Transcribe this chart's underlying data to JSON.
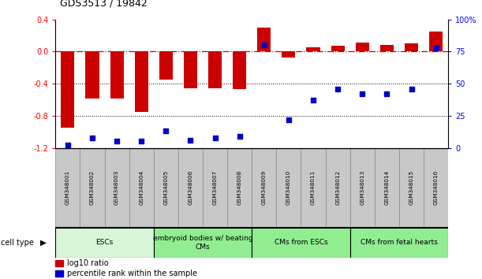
{
  "title": "GDS3513 / 19842",
  "samples": [
    "GSM348001",
    "GSM348002",
    "GSM348003",
    "GSM348004",
    "GSM348005",
    "GSM348006",
    "GSM348007",
    "GSM348008",
    "GSM348009",
    "GSM348010",
    "GSM348011",
    "GSM348012",
    "GSM348013",
    "GSM348014",
    "GSM348015",
    "GSM348016"
  ],
  "log10_ratio": [
    -0.95,
    -0.58,
    -0.58,
    -0.75,
    -0.35,
    -0.46,
    -0.46,
    -0.47,
    0.3,
    -0.07,
    0.05,
    0.07,
    0.11,
    0.08,
    0.1,
    0.25
  ],
  "percentile_rank": [
    2,
    8,
    5,
    5,
    13,
    6,
    8,
    9,
    80,
    22,
    37,
    46,
    42,
    42,
    46,
    78
  ],
  "cell_type_groups": [
    {
      "label": "ESCs",
      "start": 0,
      "end": 3,
      "color": "#d8f5d8"
    },
    {
      "label": "embryoid bodies w/ beating\nCMs",
      "start": 4,
      "end": 7,
      "color": "#90ee90"
    },
    {
      "label": "CMs from ESCs",
      "start": 8,
      "end": 11,
      "color": "#90ee90"
    },
    {
      "label": "CMs from fetal hearts",
      "start": 12,
      "end": 15,
      "color": "#90ee90"
    }
  ],
  "bar_color": "#cc0000",
  "scatter_color": "#0000cc",
  "zero_line_color": "#cc0000",
  "ylim_left": [
    -1.2,
    0.4
  ],
  "ylim_right": [
    0,
    100
  ],
  "yticks_left": [
    -1.2,
    -0.8,
    -0.4,
    0.0,
    0.4
  ],
  "yticks_right": [
    0,
    25,
    50,
    75,
    100
  ],
  "ytick_labels_right": [
    "0",
    "25",
    "50",
    "75",
    "100%"
  ],
  "cell_type_label": "cell type",
  "legend_items": [
    {
      "label": "log10 ratio",
      "color": "#cc0000"
    },
    {
      "label": "percentile rank within the sample",
      "color": "#0000cc"
    }
  ],
  "dotted_lines": [
    -0.4,
    -0.8
  ],
  "sample_box_color": "#c8c8c8",
  "sample_box_edge": "#888888"
}
